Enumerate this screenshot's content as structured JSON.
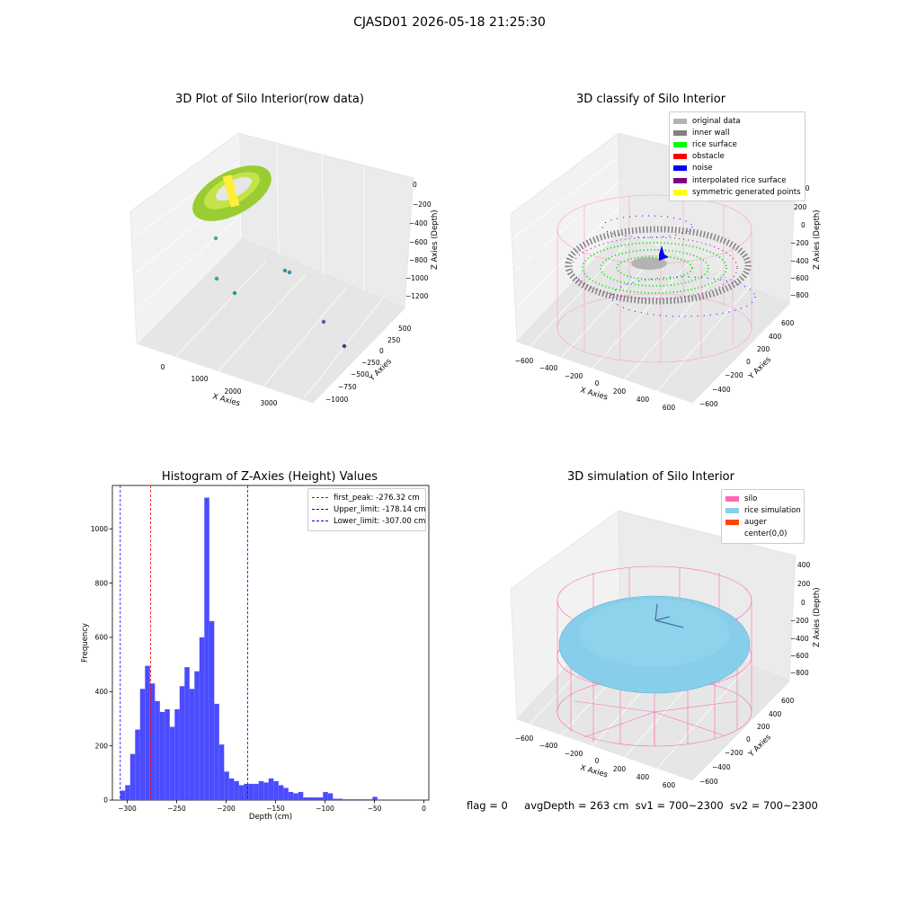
{
  "figure": {
    "title": "CJASD01 2026-05-18 21:25:30",
    "status": {
      "flag": "flag = 0",
      "avg_depth": "avgDepth = 263 cm",
      "sv1": "sv1 = 700~2300",
      "sv2": "sv2 = 700~2300"
    }
  },
  "panels": {
    "raw": {
      "title": "3D Plot of Silo Interior(row data)",
      "xlabel": "X Axies",
      "ylabel": "Y Axies",
      "zlabel": "Z Axies (Depth)",
      "xticks": [
        "0",
        "1000",
        "2000",
        "3000"
      ],
      "yticks": [
        "500",
        "250",
        "0",
        "−250",
        "−500",
        "−750",
        "−1000"
      ],
      "zticks": [
        "0",
        "−200",
        "−400",
        "−600",
        "−800",
        "−1000",
        "−1200"
      ]
    },
    "classify": {
      "title": "3D classify of Silo Interior",
      "xlabel": "X Axies",
      "ylabel": "Y Axies",
      "zlabel": "Z Axies (Depth)",
      "xticks": [
        "−600",
        "−400",
        "−200",
        "0",
        "200",
        "400",
        "600"
      ],
      "yticks": [
        "600",
        "400",
        "200",
        "0",
        "−200",
        "−400",
        "−600"
      ],
      "zticks": [
        "200",
        "0",
        "−200",
        "−400",
        "−600",
        "−800"
      ],
      "ztick_partial": "00",
      "legend": [
        {
          "label": "original data",
          "color": "#b3b3b3"
        },
        {
          "label": "inner wall",
          "color": "#808080"
        },
        {
          "label": "rice surface",
          "color": "#00ff00"
        },
        {
          "label": "obstacle",
          "color": "#ff0000"
        },
        {
          "label": "noise",
          "color": "#0000ff"
        },
        {
          "label": "interpolated rice surface",
          "color": "#800080"
        },
        {
          "label": "symmetric generated points",
          "color": "#ffff00"
        }
      ]
    },
    "simulation": {
      "title": "3D simulation of Silo Interior",
      "xlabel": "X Axies",
      "ylabel": "Y Axies",
      "zlabel": "Z Axies (Depth)",
      "xticks": [
        "−600",
        "−400",
        "−200",
        "0",
        "200",
        "400",
        "600"
      ],
      "yticks": [
        "600",
        "400",
        "200",
        "0",
        "−200",
        "−400",
        "−600"
      ],
      "zticks": [
        "400",
        "200",
        "0",
        "−200",
        "−400",
        "−600",
        "−800"
      ],
      "legend": [
        {
          "label": "silo",
          "color": "#ff69b4"
        },
        {
          "label": "rice simulation",
          "color": "#87ceeb"
        },
        {
          "label": "auger",
          "color": "#ff4500"
        },
        {
          "label": "center(0,0)",
          "color": "#ffffff"
        }
      ]
    }
  },
  "chart_data": {
    "type": "bar",
    "title": "Histogram of Z-Axies (Height) Values",
    "xlabel": "Depth (cm)",
    "ylabel": "Frequency",
    "xlim": [
      -315,
      5
    ],
    "ylim": [
      0,
      1160
    ],
    "xticks": [
      -300,
      -250,
      -200,
      -150,
      -100,
      -50,
      0
    ],
    "yticks": [
      0,
      200,
      400,
      600,
      800,
      1000
    ],
    "bar_color": "#4b4bff",
    "bins_start": -307,
    "bin_width": 5,
    "values": [
      35,
      55,
      170,
      260,
      410,
      495,
      430,
      365,
      325,
      335,
      270,
      335,
      420,
      490,
      410,
      475,
      600,
      1115,
      660,
      355,
      205,
      105,
      80,
      70,
      55,
      60,
      60,
      60,
      70,
      65,
      80,
      70,
      55,
      45,
      30,
      25,
      30,
      10,
      10,
      10,
      10,
      30,
      25,
      5,
      5,
      3,
      3,
      3,
      3,
      3,
      3,
      12
    ],
    "vlines": [
      {
        "label": "first_peak: -276.32 cm",
        "x": -276.32,
        "color": "#ff0000"
      },
      {
        "label": "Upper_limit: -178.14 cm",
        "x": -178.14,
        "color": "#0000ff"
      },
      {
        "label": "Lower_limit: -307.00 cm",
        "x": -307.0,
        "color": "#0000ff"
      }
    ],
    "legend_position": "upper right"
  }
}
